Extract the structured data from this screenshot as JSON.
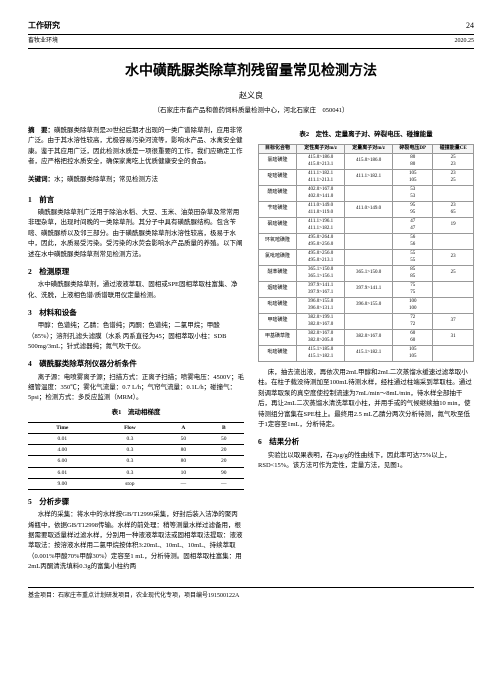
{
  "header": {
    "left": "工作研究",
    "page": "24",
    "sub_left": "畜牧业环境",
    "sub_right": "2020.25"
  },
  "title": "水中磺酰脲类除草剂残留量常见检测方法",
  "author": "赵义良",
  "affil": "（石家庄市畜产品和兽药饲料质量检测中心，河北石家庄　050041）",
  "abstract_label": "摘　要：",
  "abstract": "磺酰脲类除草剂是20世纪后期才出现的一类广谱除草剂，应用非常广泛。由于其水溶性较高，尤极容易污染河流等，影响水产品、水禽安全健康。鉴于其应用广泛，因此检测水质是一项很重要的工作，我们应确定工作者，应严格把控水质安全，确保家禽吃上优质健康安全的食品。",
  "keywords_label": "关键词：",
  "keywords": "水；磺酰脲类除草剂；常见检测方法",
  "s1_h": "1　前言",
  "s1_p1": "磺酰脲类除草剂广泛用于除治水稻、大豆、玉米、油菜田杂草及常常用非理杂草，出现时间晚的一类除草剂。其分子中具有磺酰脲结构。包含苄嘧、磺酰脲桥以及邻三部分。由于磺酰脲类除草剂水溶性较高，极易于水中，因此，水质易受污染。受污染的水荧会影响水产品质量的养殖。以下阐述在水中磺酰脲类除草剂常见检测方法。",
  "s2_h": "2　检测原理",
  "s2_p1": "水中磺酰脲类除草剂，通过液液萃取、固相或SPE固相萃取柱富集、净化、洗脱，上液相色谱/质谱联用仪定量检测。",
  "s3_h": "3　材料和设备",
  "s3_p1": "甲醇：色谱纯；乙腈：色谱纯；丙酮：色谱纯；二氯甲烷；甲酸（85%）；溶剂孔滤头滤膜（水系 丙系直径为45；固相萃取小柱：SDB 500mg/3mL；针式滤器纯；氮气吹干仪。",
  "s4_h": "4　磺酰脲类除草剂仪器分析条件",
  "s4_p1": "离子源：电喷雾离子源；扫描方式：正离子扫描；喷雾电压：4500V；毛细管温度：350℃；雾化气流量：0.7 L/h；气帘气流量：0.1L/h；碰撞气：5psi；检测方式：多反应监测（MRM）。",
  "t1_cap": "表1　流动相梯度",
  "t1": {
    "headers": [
      "Time",
      "Flow",
      "A",
      "B"
    ],
    "rows": [
      [
        "0.01",
        "0.3",
        "50",
        "50"
      ],
      [
        "4.00",
        "0.3",
        "80",
        "20"
      ],
      [
        "6.00",
        "0.3",
        "80",
        "20"
      ],
      [
        "6.01",
        "0.3",
        "10",
        "90"
      ],
      [
        "9.00",
        "stop",
        "—",
        "—"
      ]
    ]
  },
  "s5_h": "5　分析步骤",
  "s5_p1": "水样的采集：将水中的水样按GB/T12999采集，好封后装入洁净的聚丙烯瓶中，依据GB/T12998传输。水样的前处理：稍等测量水样过滤备用，根据需要取适量样过滤水样，分别用一种液液萃取法或固相萃取法提取：液液萃取法：按溶液水样用二氯甲烷按体积3:20mL、10mL、10mL、持续萃取（0.001%甲酸70%甲醇30%）定容至1 mL，分析待测。固相萃取柱富集：用2mL丙酮清洗填料0.3g的富集小柱约两",
  "t2_cap": "表2　定性、定量离子对、碎裂电压、碰撞能量",
  "t2": {
    "headers": [
      "目标化合物",
      "定性离子对m/z",
      "定量离子对m/z",
      "碎裂电压DP",
      "碰撞能量CE"
    ],
    "rows": [
      [
        "氯嘧磺隆",
        "415.0>186.0\n415.0>213.1",
        "415.0>186.0",
        "80\n80",
        "25\n23"
      ],
      [
        "啶嘧磺隆",
        "411.1>182.1\n411.1>213.1",
        "411.1>182.1",
        "105\n105",
        "23\n25"
      ],
      [
        "酰嘧磺隆",
        "402.0>167.0\n402.0>141.0",
        "",
        "53\n53",
        ""
      ],
      [
        "苄嘧磺隆",
        "411.0>149.0\n411.0>119.0",
        "411.0>149.0",
        "95\n95",
        "23\n65"
      ],
      [
        "砜嘧磺隆",
        "411.1>196.1\n411.1>182.1",
        "",
        "47\n47",
        "19\n"
      ],
      [
        "环氧嘧磺隆",
        "495.0>264.0\n495.0>256.0",
        "",
        "56\n56",
        ""
      ],
      [
        "氯吡嘧磺隆",
        "495.0>256.0\n495.0>213.1",
        "",
        "55\n55",
        "23\n"
      ],
      [
        "醚苯磺隆",
        "365.1>150.0\n365.1>156.1",
        "365.1>150.0",
        "85\n85",
        "25"
      ],
      [
        "烟嘧磺隆",
        "397.9>141.1\n397.9>167.1",
        "397.9>141.1",
        "75\n75",
        ""
      ],
      [
        "吡嘧磺隆",
        "396.0>155.0\n396.0>131.1",
        "396.0>155.0",
        "100\n100",
        ""
      ],
      [
        "甲嘧磺隆",
        "382.0>199.1\n382.0>167.0",
        "",
        "72\n72",
        "37"
      ],
      [
        "甲基磺草隆",
        "382.0>167.0\n382.0>205.0",
        "382.0>167.0",
        "60\n60",
        "31\n"
      ],
      [
        "吡嘧磺隆",
        "415.1>185.0\n415.1>182.1",
        "415.1>182.1",
        "105\n105",
        ""
      ]
    ]
  },
  "s5_p2": "床，抽去流出液，再依次用2mL甲醇和2mL二次蒸馏水缓速过滤萃取小柱。在柱子载没待测加至100mL待测水样，经柱通过柱端采到萃取柱。通过刻调萃取泵的真空度使控制流速为7mL/min～8mL/min，待水样全部抽干后，再让2mL二次蒸馏水清洗萃取小柱，并用手或的气候继续抽10 min，使待测组分富集在SPE柱上。最终用2.5 mL乙腈分两次分析待测，氮气吹至低于1定容至1mL，分析待定。",
  "s6_h": "6　结果分析",
  "s6_p1": "实验比以取果表明，在2μg/g的性曲线下，因此率可达75%以上，RSD<15%。该方法可作为定性，定量方法，见图1。",
  "footer": "基金项目：石家庄市重点计划研发项目，农业现代化专项，项目编号191500122A"
}
